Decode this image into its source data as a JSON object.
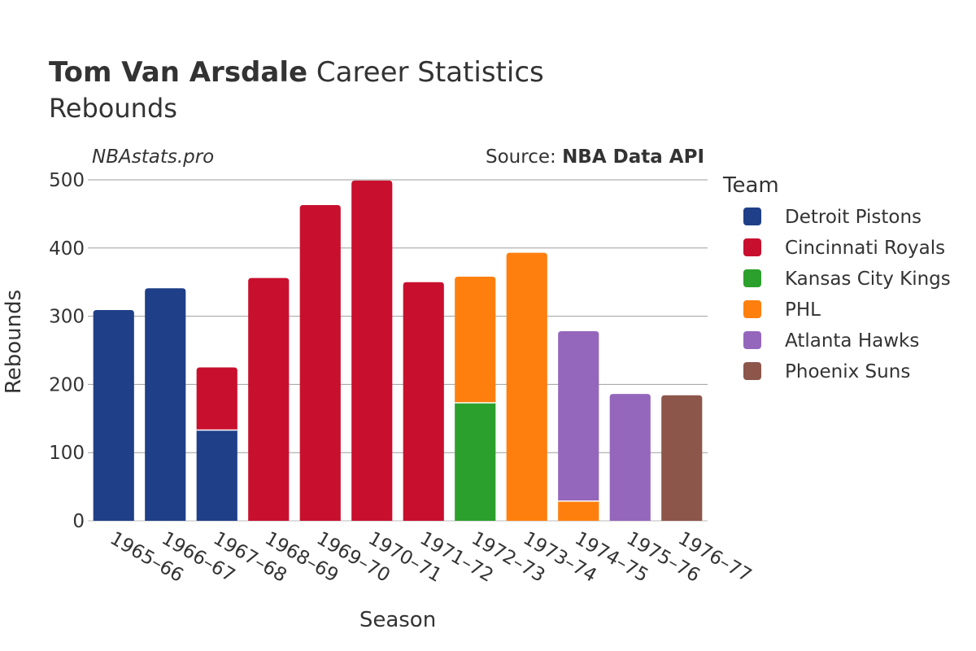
{
  "header": {
    "title_bold": "Tom Van Arsdale",
    "title_rest": " Career Statistics",
    "subtitle": "Rebounds",
    "watermark": "NBAstats.pro",
    "source_prefix": "Source: ",
    "source_name": "NBA Data API"
  },
  "legend": {
    "title": "Team"
  },
  "chart_data": {
    "type": "bar",
    "stacked": true,
    "xlabel": "Season",
    "ylabel": "Rebounds",
    "ylim": [
      0,
      500
    ],
    "yticks": [
      0,
      100,
      200,
      300,
      400,
      500
    ],
    "grid": true,
    "legend_position": "right",
    "categories": [
      "1965–66",
      "1966–67",
      "1967–68",
      "1968–69",
      "1969–70",
      "1970–71",
      "1971–72",
      "1972–73",
      "1973–74",
      "1974–75",
      "1975–76",
      "1976–77"
    ],
    "series": [
      {
        "name": "Detroit Pistons",
        "color": "#1f4088",
        "values": [
          309,
          341,
          133,
          0,
          0,
          0,
          0,
          0,
          0,
          0,
          0,
          0
        ]
      },
      {
        "name": "Cincinnati Royals",
        "color": "#c8102e",
        "values": [
          0,
          0,
          92,
          356,
          463,
          499,
          350,
          0,
          0,
          0,
          0,
          0
        ]
      },
      {
        "name": "Kansas City Kings",
        "color": "#2ca02c",
        "values": [
          0,
          0,
          0,
          0,
          0,
          0,
          0,
          173,
          0,
          0,
          0,
          0
        ]
      },
      {
        "name": "PHL",
        "color": "#ff7f0e",
        "values": [
          0,
          0,
          0,
          0,
          0,
          0,
          0,
          185,
          393,
          29,
          0,
          0
        ]
      },
      {
        "name": "Atlanta Hawks",
        "color": "#9467bd",
        "values": [
          0,
          0,
          0,
          0,
          0,
          0,
          0,
          0,
          0,
          249,
          186,
          0
        ]
      },
      {
        "name": "Phoenix Suns",
        "color": "#8c564b",
        "values": [
          0,
          0,
          0,
          0,
          0,
          0,
          0,
          0,
          0,
          0,
          0,
          184
        ]
      }
    ]
  }
}
